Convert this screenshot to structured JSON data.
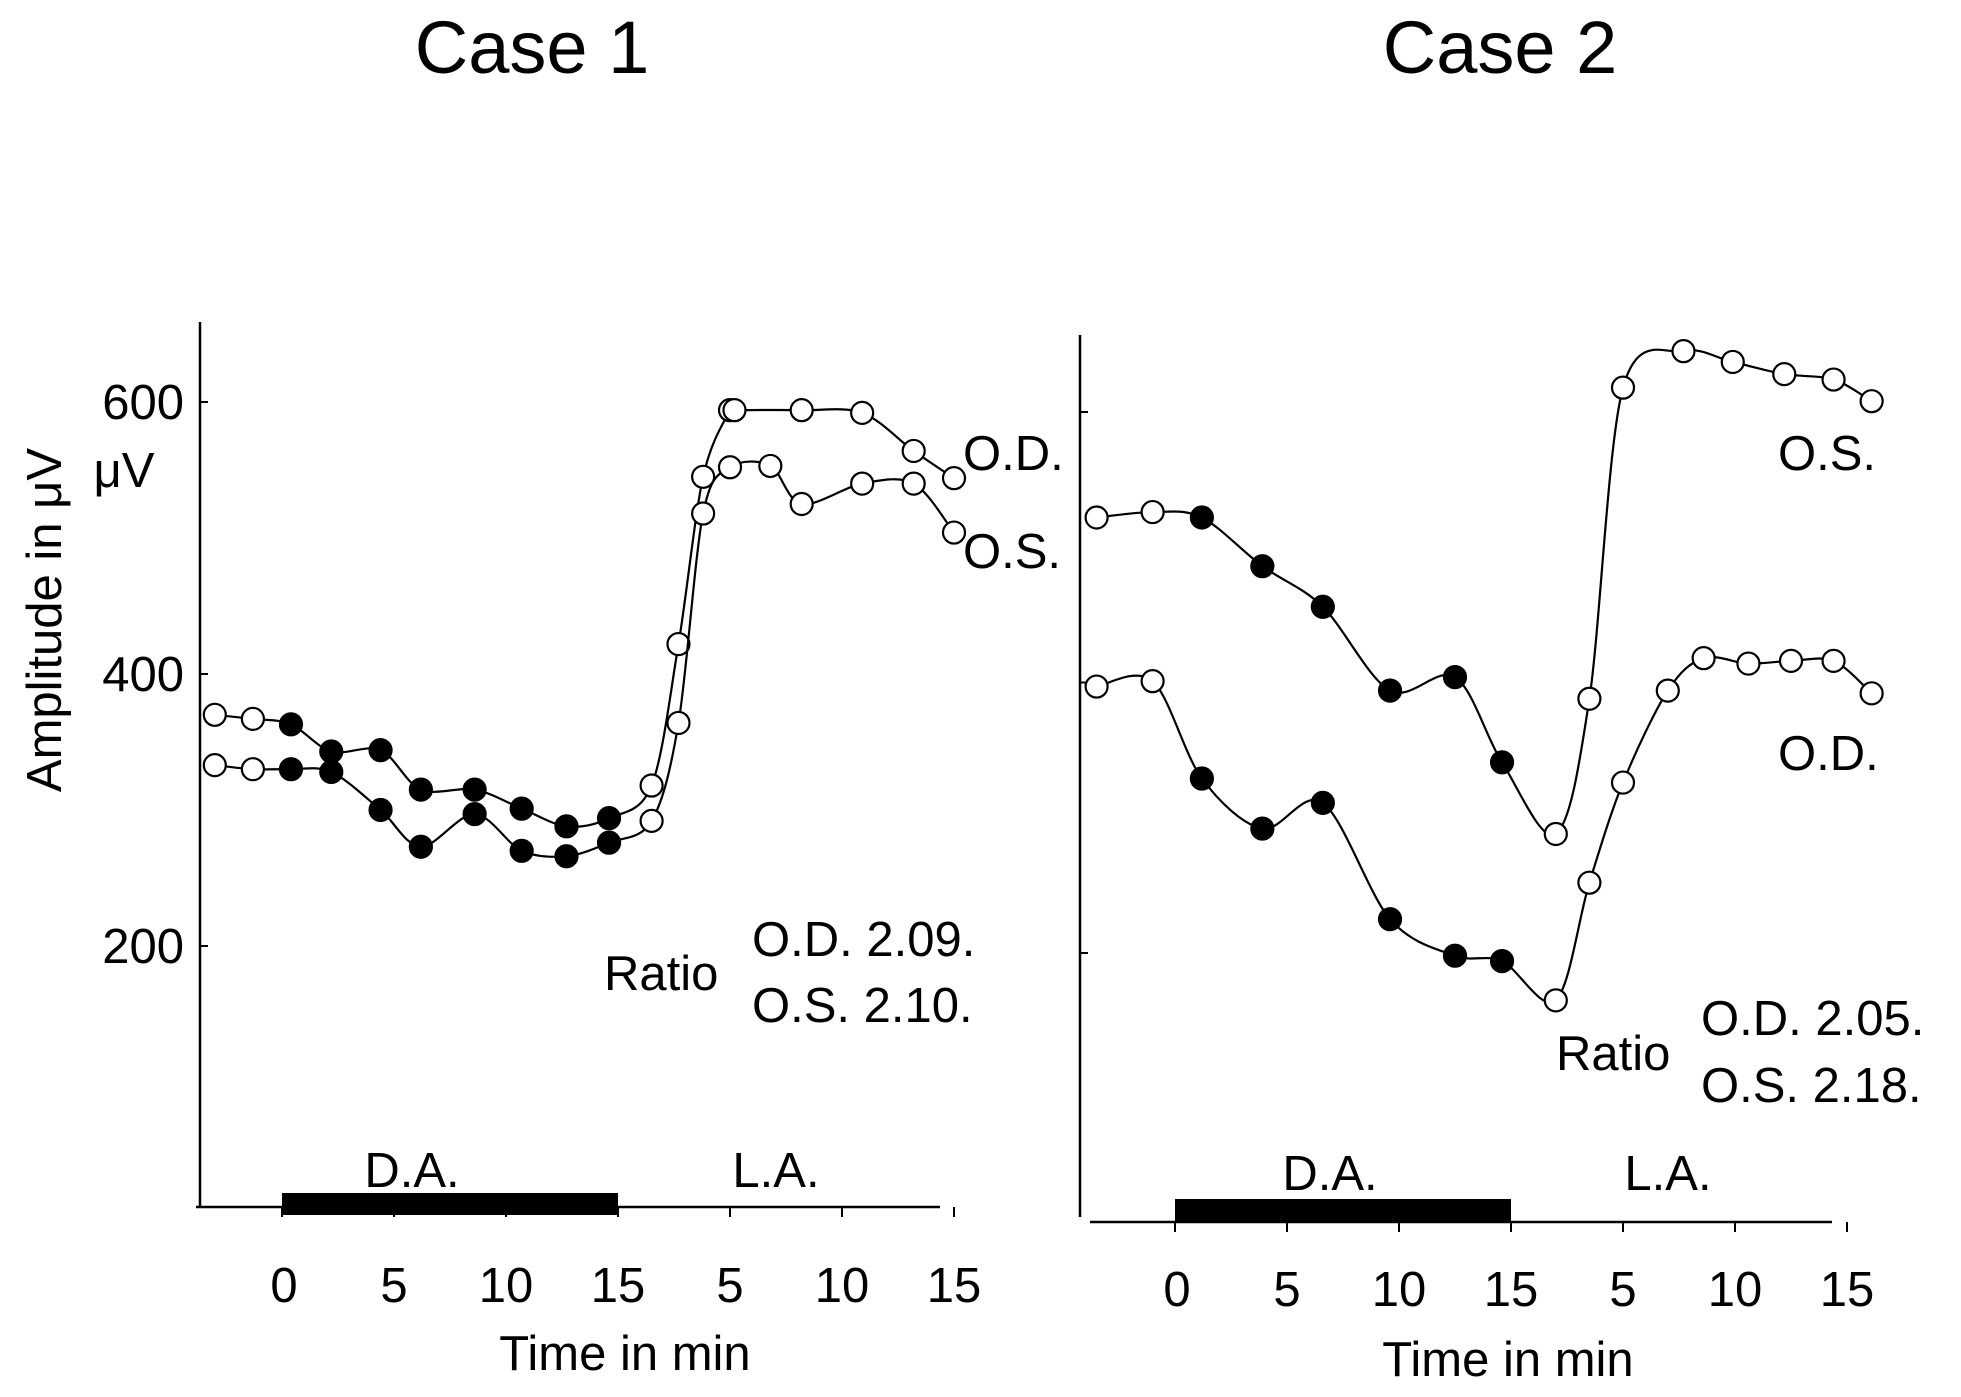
{
  "chart_data": [
    {
      "type": "line",
      "title": "Case 1",
      "ylabel": "Amplitude in μV",
      "yunit": "μV",
      "xlabel": "Time in min",
      "ylim": [
        0,
        650
      ],
      "yticks": [
        200,
        400,
        600
      ],
      "ytick_labels": [
        "200",
        "400",
        "600"
      ],
      "xtick_labels": [
        "0",
        "5",
        "10",
        "15",
        "5",
        "10",
        "15"
      ],
      "phase_dark": "D.A.",
      "phase_light": "L.A.",
      "ratio_label": "Ratio",
      "ratio_od": "O.D. 2.09.",
      "ratio_os": "O.S. 2.10.",
      "series": [
        {
          "name": "O.D.",
          "x": [
            -3.0,
            -1.3,
            0.4,
            2.2,
            4.4,
            6.2,
            8.6,
            10.7,
            12.7,
            14.6,
            16.5,
            17.7,
            18.8,
            20.0,
            20.2,
            23.2,
            25.9,
            28.2,
            30.0
          ],
          "y": [
            370,
            367,
            363,
            343,
            344,
            315,
            315,
            301,
            288,
            294,
            318,
            422,
            545,
            594,
            594,
            594,
            592,
            564,
            544
          ],
          "filled": [
            false,
            false,
            true,
            true,
            true,
            true,
            true,
            true,
            true,
            true,
            false,
            false,
            false,
            false,
            false,
            false,
            false,
            false,
            false
          ]
        },
        {
          "name": "O.S.",
          "x": [
            -3.0,
            -1.3,
            0.4,
            2.2,
            4.4,
            6.2,
            8.6,
            10.7,
            12.7,
            14.6,
            16.5,
            17.7,
            18.8,
            20.0,
            21.8,
            23.2,
            25.9,
            28.2,
            30.0
          ],
          "y": [
            333,
            330,
            330,
            328,
            300,
            273,
            297,
            270,
            266,
            276,
            292,
            364,
            518,
            552,
            553,
            525,
            540,
            540,
            504
          ],
          "filled": [
            false,
            false,
            true,
            true,
            true,
            true,
            true,
            true,
            true,
            true,
            false,
            false,
            false,
            false,
            false,
            false,
            false,
            false,
            false
          ]
        }
      ]
    },
    {
      "type": "line",
      "title": "Case 2",
      "xlabel": "Time in min",
      "ylim": [
        0,
        650
      ],
      "yticks": [
        200,
        400,
        600
      ],
      "xtick_labels": [
        "0",
        "5",
        "10",
        "15",
        "5",
        "10",
        "15"
      ],
      "phase_dark": "D.A.",
      "phase_light": "L.A.",
      "ratio_label": "Ratio",
      "ratio_od": "O.D. 2.05.",
      "ratio_os": "O.S. 2.18.",
      "series": [
        {
          "name": "O.S.",
          "x": [
            -3.5,
            -1.0,
            1.2,
            3.9,
            6.6,
            9.6,
            12.5,
            14.6,
            17.0,
            18.5,
            20.0,
            22.7,
            24.9,
            27.2,
            29.4,
            31.1
          ],
          "y": [
            522,
            526,
            522,
            486,
            456,
            394,
            404,
            341,
            288,
            388,
            618,
            645,
            637,
            628,
            624,
            608
          ],
          "filled": [
            false,
            false,
            true,
            true,
            true,
            true,
            true,
            true,
            false,
            false,
            false,
            false,
            false,
            false,
            false,
            false
          ]
        },
        {
          "name": "O.D.",
          "x": [
            -3.5,
            -1.0,
            1.2,
            3.9,
            6.6,
            9.6,
            12.5,
            14.6,
            17.0,
            18.5,
            20.0,
            22.0,
            23.6,
            25.6,
            27.5,
            29.4,
            31.1
          ],
          "y": [
            397,
            401,
            329,
            292,
            311,
            225,
            198,
            194,
            165,
            252,
            326,
            394,
            418,
            414,
            416,
            416,
            392
          ],
          "filled": [
            false,
            false,
            true,
            true,
            true,
            true,
            true,
            true,
            false,
            false,
            false,
            false,
            false,
            false,
            false,
            false,
            false
          ]
        }
      ]
    }
  ]
}
